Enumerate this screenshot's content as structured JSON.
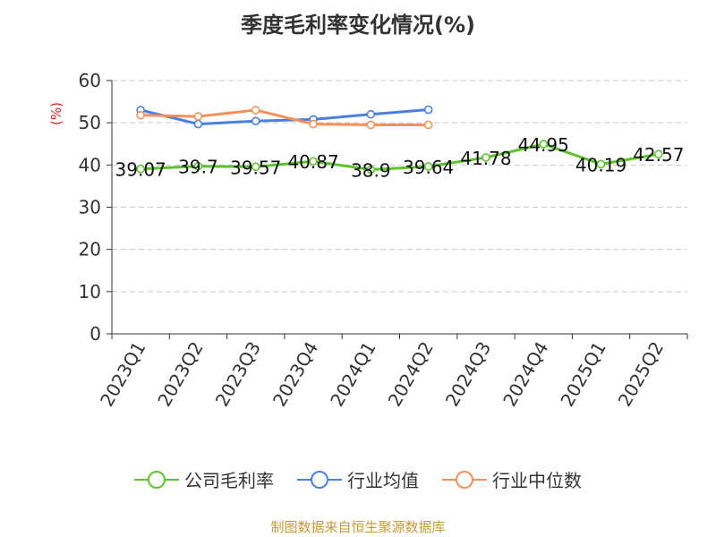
{
  "title": "季度毛利率变化情况(%)",
  "source_note": "制图数据来自恒生聚源数据库",
  "chart_data": {
    "type": "line",
    "title": "季度毛利率变化情况(%)",
    "xlabel": "",
    "ylabel": "(%)",
    "ylim": [
      0,
      60
    ],
    "yticks": [
      0,
      10,
      20,
      30,
      40,
      50,
      60
    ],
    "grid": true,
    "legend_position": "bottom",
    "categories": [
      "2023Q1",
      "2023Q2",
      "2023Q3",
      "2023Q4",
      "2024Q1",
      "2024Q2",
      "2024Q3",
      "2024Q4",
      "2025Q1",
      "2025Q2"
    ],
    "series": [
      {
        "name": "公司毛利率",
        "color": "#5ac42a",
        "values": [
          39.07,
          39.7,
          39.57,
          40.87,
          38.9,
          39.64,
          41.78,
          44.95,
          40.19,
          42.57
        ],
        "labels": [
          "39.07",
          "39.7",
          "39.57",
          "40.87",
          "38.9",
          "39.64",
          "41.78",
          "44.95",
          "40.19",
          "42.57"
        ]
      },
      {
        "name": "行业均值",
        "color": "#4a7fde",
        "values": [
          53.0,
          49.7,
          50.4,
          50.8,
          52.0,
          53.1,
          null,
          null,
          null,
          null
        ]
      },
      {
        "name": "行业中位数",
        "color": "#f5905a",
        "values": [
          51.8,
          51.5,
          53.0,
          49.7,
          49.5,
          49.5,
          null,
          null,
          null,
          null
        ]
      }
    ]
  }
}
